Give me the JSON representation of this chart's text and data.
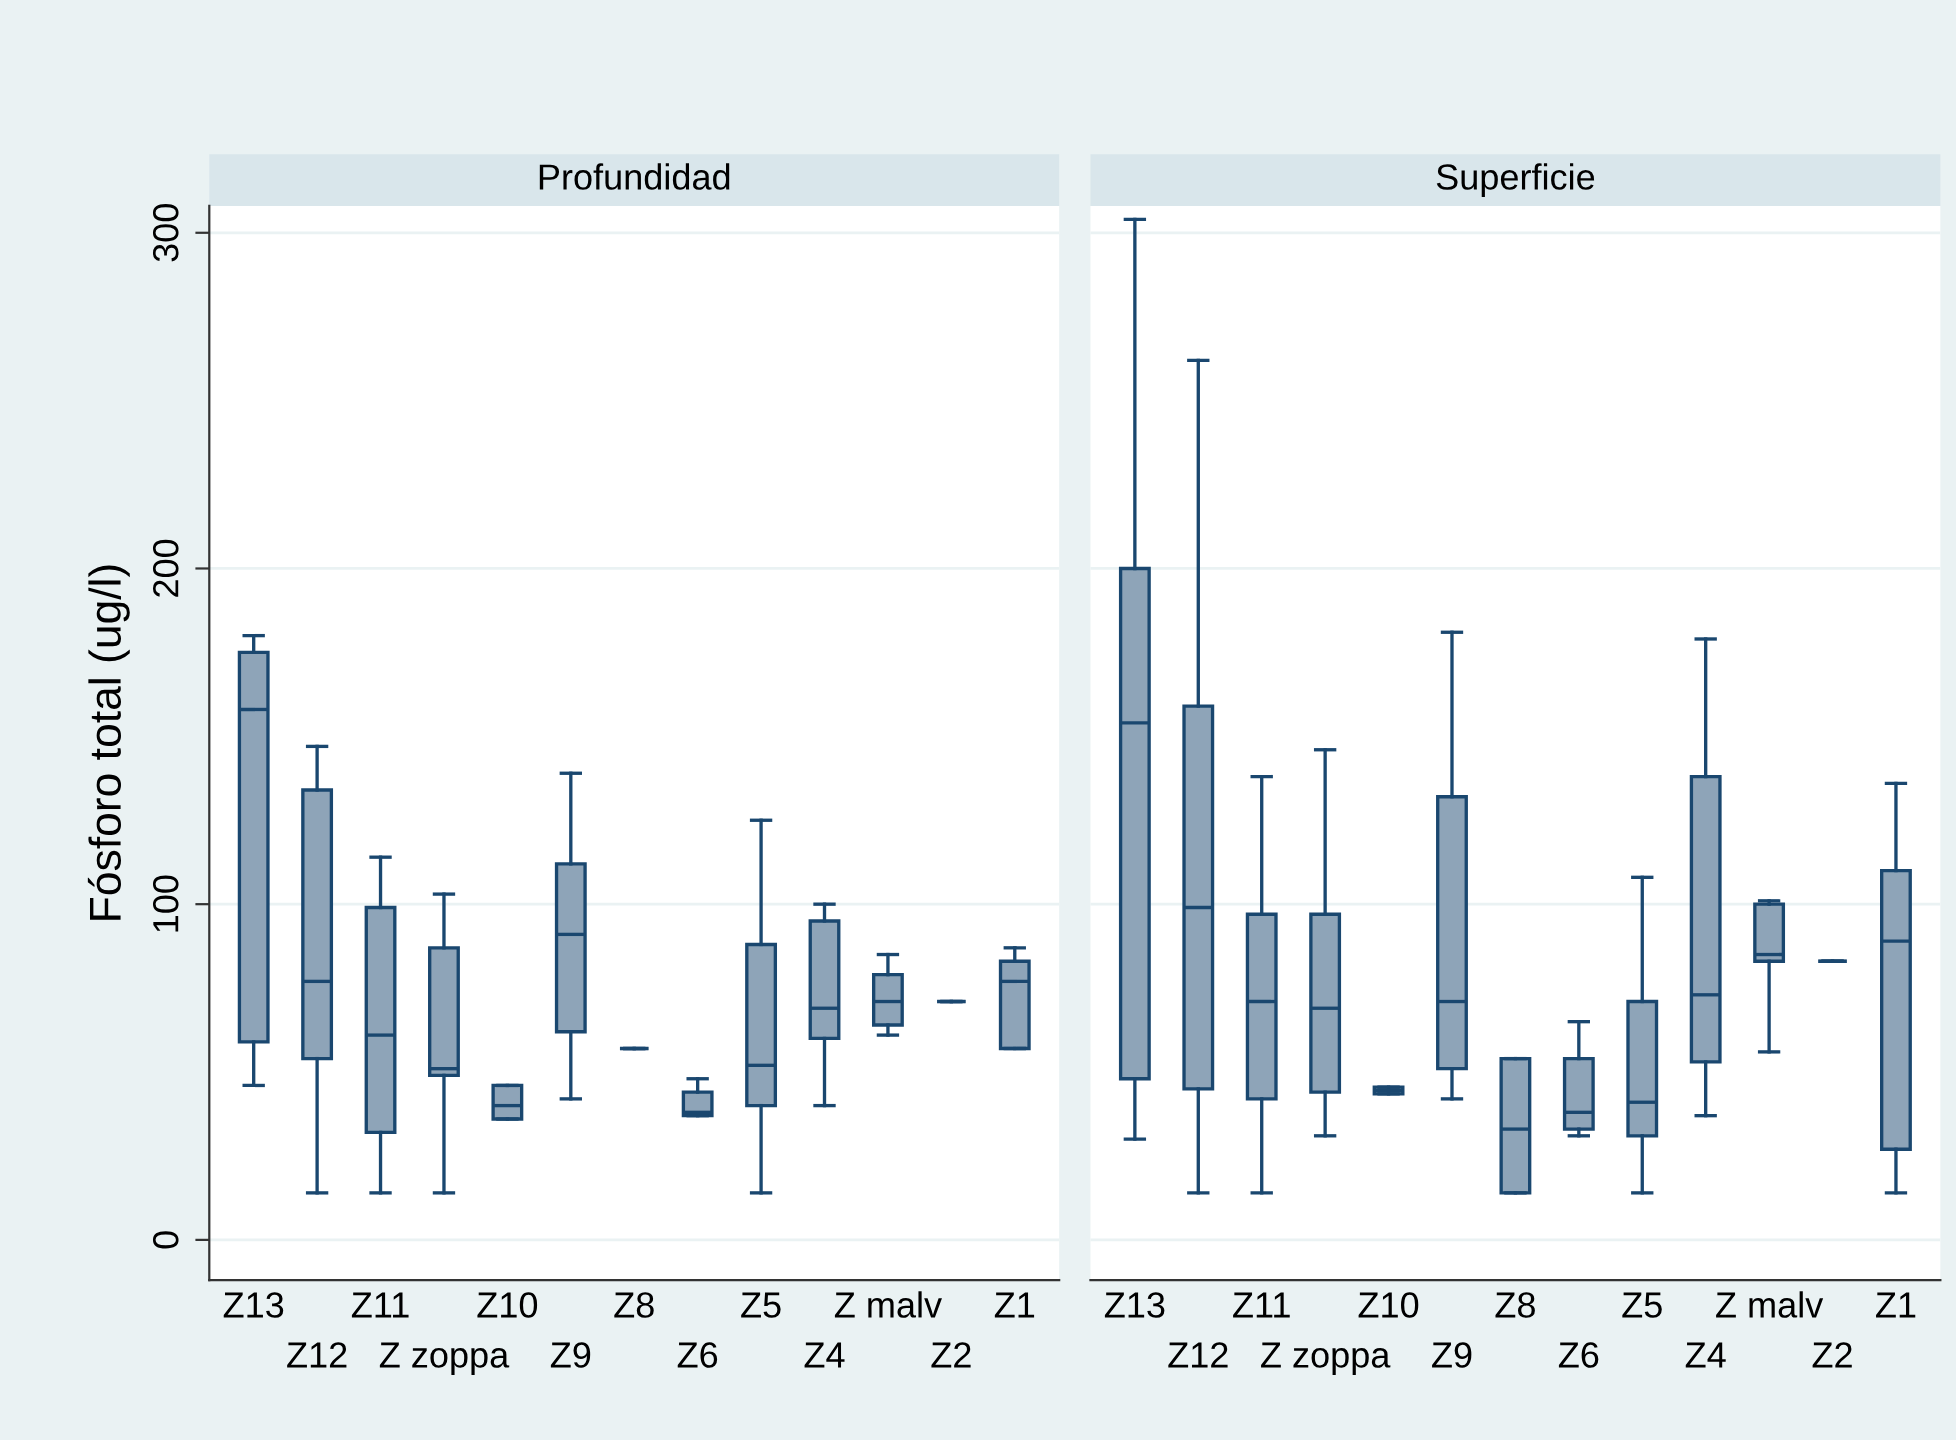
{
  "chart_data": [
    {
      "type": "box",
      "title": "Profundidad",
      "ylabel": "Fósforo total (ug/l)",
      "categories": [
        "Z13",
        "Z12",
        "Z11",
        "Z zoppa",
        "Z10",
        "Z9",
        "Z8",
        "Z6",
        "Z5",
        "Z4",
        "Z malv",
        "Z2",
        "Z1"
      ],
      "color": "#8ea4b8",
      "boxes": [
        {
          "low": 46,
          "q1": 59,
          "median": 158,
          "q3": 175,
          "high": 180
        },
        {
          "low": 14,
          "q1": 54,
          "median": 77,
          "q3": 134,
          "high": 147
        },
        {
          "low": 14,
          "q1": 32,
          "median": 61,
          "q3": 99,
          "high": 114
        },
        {
          "low": 14,
          "q1": 49,
          "median": 51,
          "q3": 87,
          "high": 103
        },
        {
          "low": 36,
          "q1": 36,
          "median": 40,
          "q3": 46,
          "high": 46
        },
        {
          "low": 42,
          "q1": 62,
          "median": 91,
          "q3": 112,
          "high": 139
        },
        {
          "low": 57,
          "q1": 57,
          "median": 57,
          "q3": 57,
          "high": 57
        },
        {
          "low": 37,
          "q1": 37,
          "median": 38,
          "q3": 44,
          "high": 48
        },
        {
          "low": 14,
          "q1": 40,
          "median": 52,
          "q3": 88,
          "high": 125
        },
        {
          "low": 40,
          "q1": 60,
          "median": 69,
          "q3": 95,
          "high": 100
        },
        {
          "low": 61,
          "q1": 64,
          "median": 71,
          "q3": 79,
          "high": 85
        },
        {
          "low": 71,
          "q1": 71,
          "median": 71,
          "q3": 71,
          "high": 71
        },
        {
          "low": 57,
          "q1": 57,
          "median": 77,
          "q3": 83,
          "high": 87
        }
      ],
      "ylim": [
        -12,
        308
      ],
      "yticks": [
        0,
        100,
        200,
        300
      ],
      "grid": "y"
    },
    {
      "type": "box",
      "title": "Superficie",
      "categories": [
        "Z13",
        "Z12",
        "Z11",
        "Z zoppa",
        "Z10",
        "Z9",
        "Z8",
        "Z6",
        "Z5",
        "Z4",
        "Z malv",
        "Z2",
        "Z1"
      ],
      "color": "#8ea4b8",
      "boxes": [
        {
          "low": 30,
          "q1": 48,
          "median": 154,
          "q3": 200,
          "high": 304
        },
        {
          "low": 14,
          "q1": 45,
          "median": 99,
          "q3": 159,
          "high": 262
        },
        {
          "low": 14,
          "q1": 42,
          "median": 71,
          "q3": 97,
          "high": 138
        },
        {
          "low": 31,
          "q1": 44,
          "median": 69,
          "q3": 97,
          "high": 146
        },
        {
          "low": 43.5,
          "q1": 43.5,
          "median": 44.5,
          "q3": 45.5,
          "high": 45.5
        },
        {
          "low": 42,
          "q1": 51,
          "median": 71,
          "q3": 132,
          "high": 181
        },
        {
          "low": 14,
          "q1": 14,
          "median": 33,
          "q3": 54,
          "high": 54
        },
        {
          "low": 31,
          "q1": 33,
          "median": 38,
          "q3": 54,
          "high": 65
        },
        {
          "low": 14,
          "q1": 31,
          "median": 41,
          "q3": 71,
          "high": 108
        },
        {
          "low": 37,
          "q1": 53,
          "median": 73,
          "q3": 138,
          "high": 179
        },
        {
          "low": 56,
          "q1": 83,
          "median": 85,
          "q3": 100,
          "high": 101
        },
        {
          "low": 83,
          "q1": 83,
          "median": 83,
          "q3": 83,
          "high": 83
        },
        {
          "low": 14,
          "q1": 27,
          "median": 89,
          "q3": 110,
          "high": 136
        }
      ],
      "ylim": [
        -12,
        308
      ],
      "yticks": [
        0,
        100,
        200,
        300
      ],
      "grid": "y",
      "tick_labels": "x"
    }
  ]
}
